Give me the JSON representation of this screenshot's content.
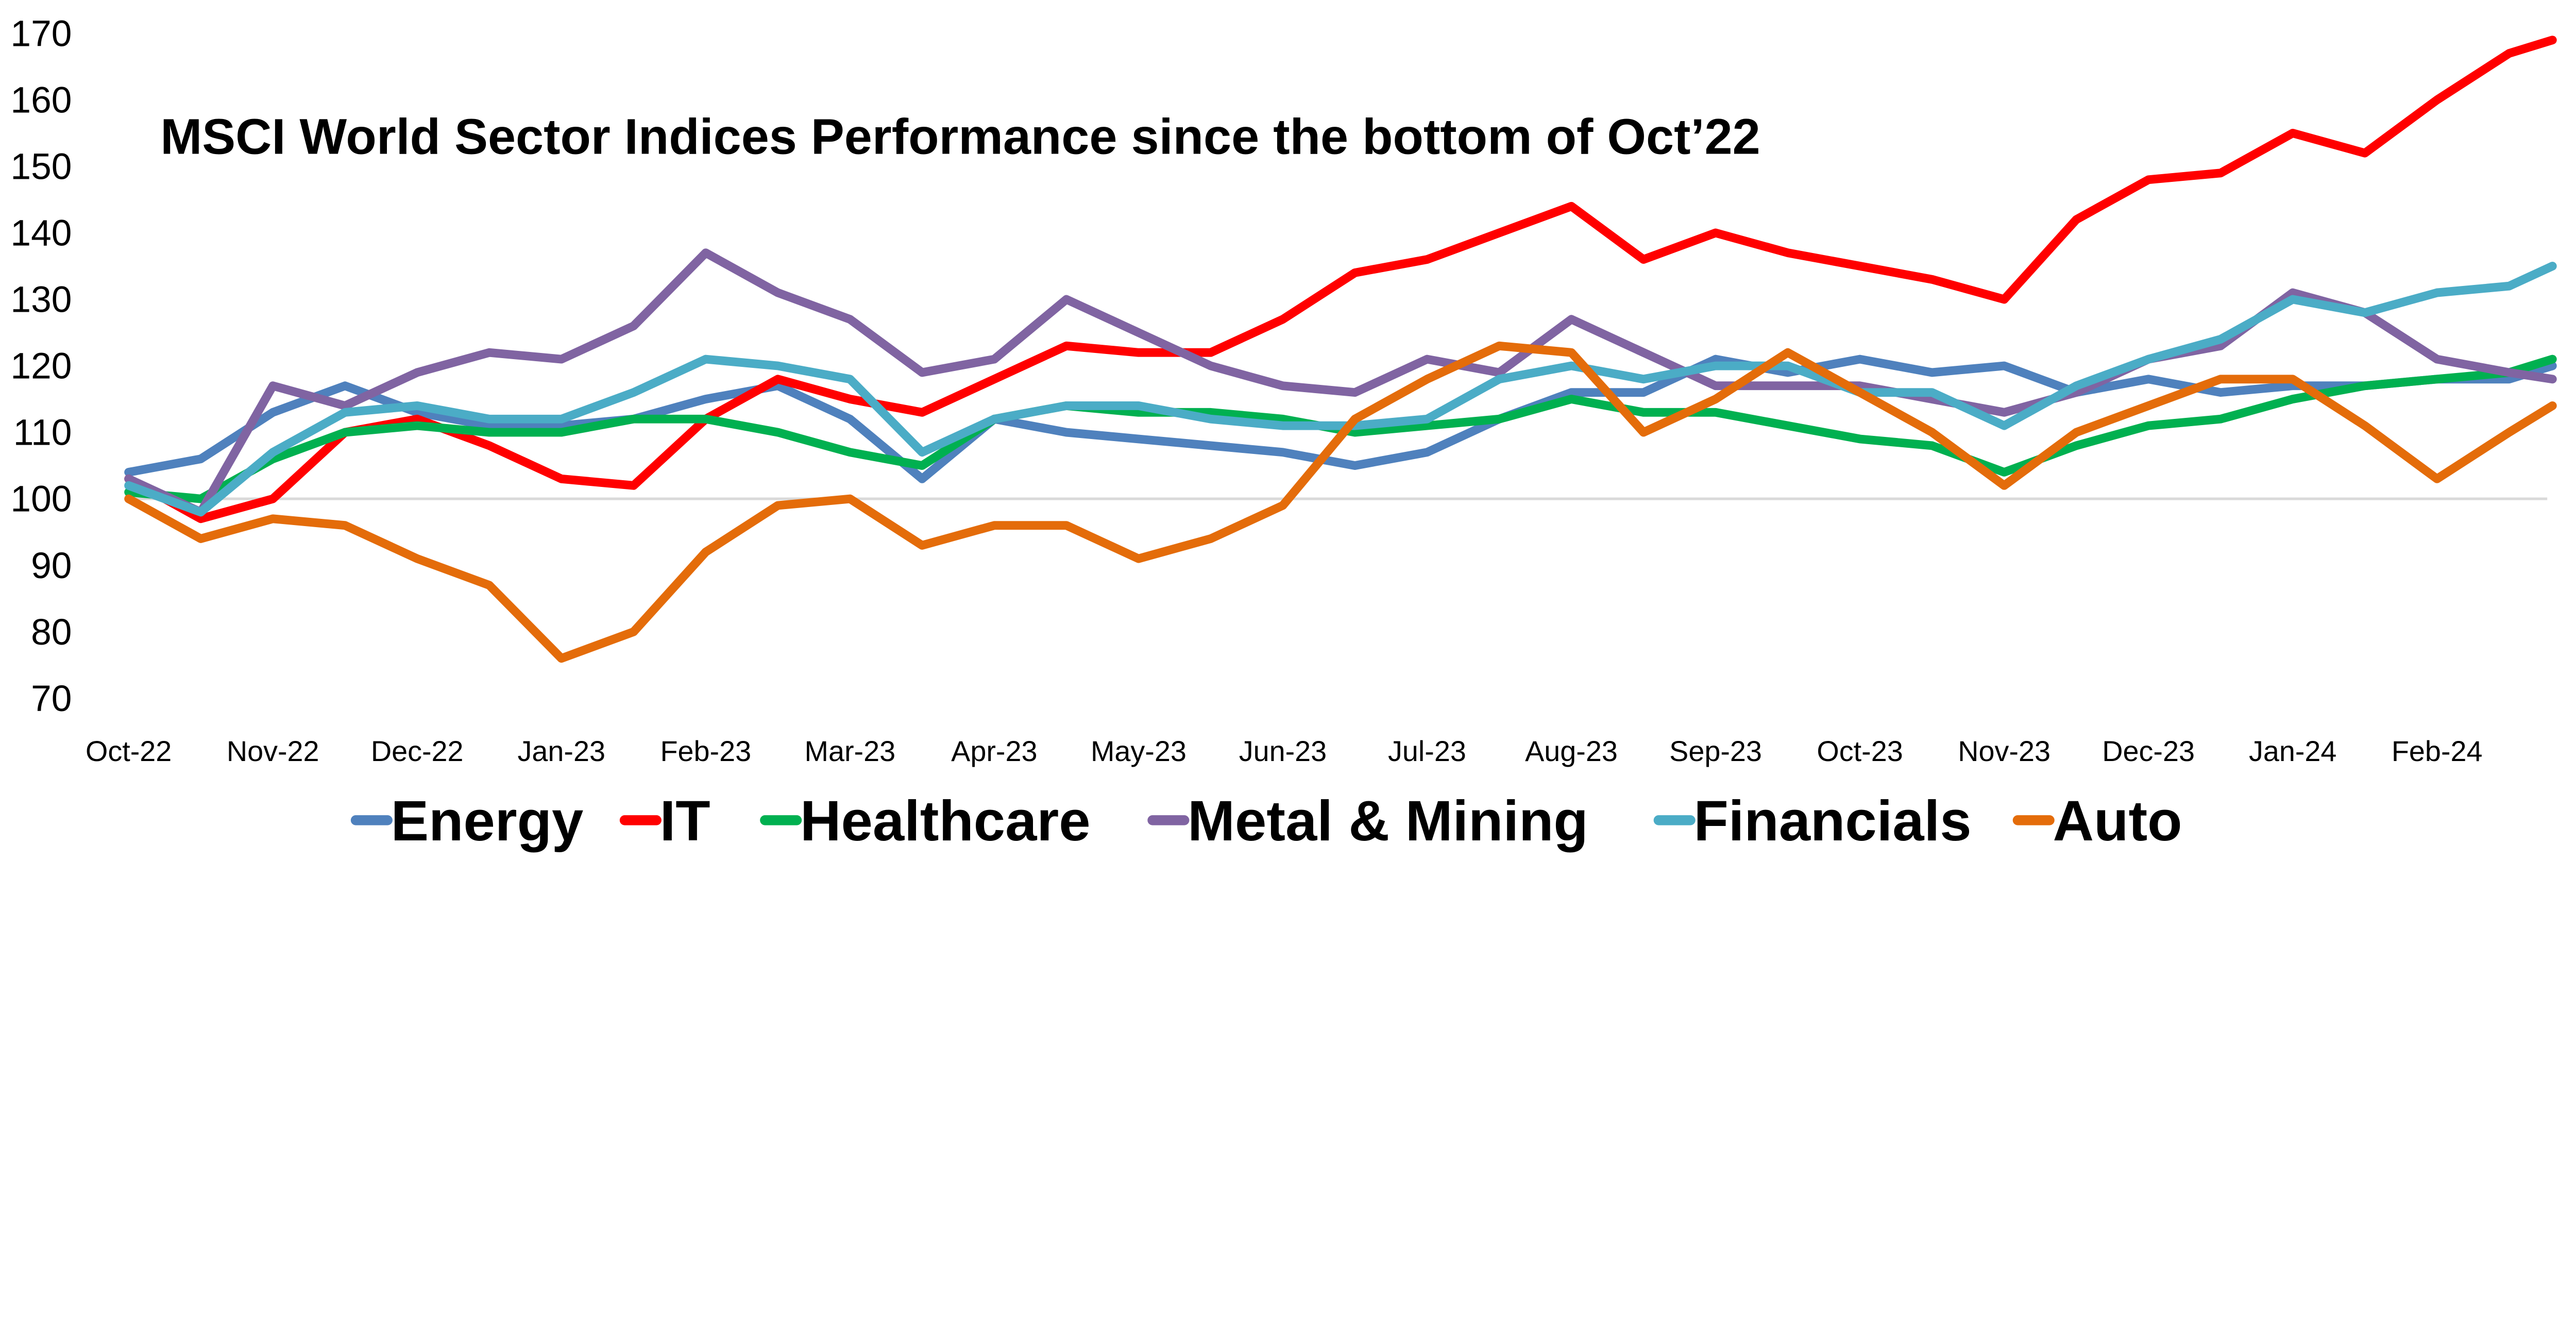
{
  "chart_data": {
    "type": "line",
    "title": "MSCI World Sector Indices Performance since the bottom of Oct’22",
    "xlabel": "",
    "ylabel": "",
    "ylim": [
      70,
      170
    ],
    "yticks": [
      70,
      80,
      90,
      100,
      110,
      120,
      130,
      140,
      150,
      160,
      170
    ],
    "xtick_labels": [
      "Oct-22",
      "Nov-22",
      "Dec-22",
      "Jan-23",
      "Feb-23",
      "Mar-23",
      "Apr-23",
      "May-23",
      "Jun-23",
      "Jul-23",
      "Aug-23",
      "Sep-23",
      "Oct-23",
      "Nov-23",
      "Dec-23",
      "Jan-24",
      "Feb-24"
    ],
    "x_unit": "months since Oct-22",
    "x": [
      0,
      0.5,
      1,
      1.5,
      2,
      2.5,
      3,
      3.5,
      4,
      4.5,
      5,
      5.5,
      6,
      6.5,
      7,
      7.5,
      8,
      8.5,
      9,
      9.5,
      10,
      10.5,
      11,
      11.5,
      12,
      12.5,
      13,
      13.5,
      14,
      14.5,
      15,
      15.5,
      16,
      16.5,
      16.8
    ],
    "xlim": [
      0,
      16.8
    ],
    "grid": "reference line at 100",
    "legend_position": "bottom",
    "series": [
      {
        "name": "Energy",
        "color": "#4F81BD",
        "values": [
          104,
          106,
          113,
          117,
          113,
          111,
          111,
          112,
          115,
          117,
          112,
          103,
          112,
          110,
          109,
          108,
          107,
          105,
          107,
          112,
          116,
          116,
          121,
          119,
          121,
          119,
          120,
          116,
          118,
          116,
          117,
          117,
          118,
          118,
          120
        ]
      },
      {
        "name": "IT",
        "color": "#FF0000",
        "values": [
          103,
          97,
          100,
          110,
          112,
          108,
          103,
          102,
          112,
          118,
          115,
          113,
          118,
          123,
          122,
          122,
          127,
          134,
          136,
          140,
          144,
          136,
          140,
          137,
          135,
          133,
          130,
          142,
          148,
          149,
          155,
          152,
          160,
          167,
          169
        ]
      },
      {
        "name": "Healthcare",
        "color": "#00B050",
        "values": [
          101,
          100,
          106,
          110,
          111,
          110,
          110,
          112,
          112,
          110,
          107,
          105,
          112,
          114,
          113,
          113,
          112,
          110,
          111,
          112,
          115,
          113,
          113,
          111,
          109,
          108,
          104,
          108,
          111,
          112,
          115,
          117,
          118,
          119,
          121
        ]
      },
      {
        "name": "Metal & Mining",
        "color": "#8064A2",
        "values": [
          103,
          98,
          117,
          114,
          119,
          122,
          121,
          126,
          137,
          131,
          127,
          119,
          121,
          130,
          125,
          120,
          117,
          116,
          121,
          119,
          127,
          122,
          117,
          117,
          117,
          115,
          113,
          116,
          121,
          123,
          131,
          128,
          121,
          119,
          118
        ]
      },
      {
        "name": "Financials",
        "color": "#4BACC6",
        "values": [
          102,
          98,
          107,
          113,
          114,
          112,
          112,
          116,
          121,
          120,
          118,
          107,
          112,
          114,
          114,
          112,
          111,
          111,
          112,
          118,
          120,
          118,
          120,
          120,
          116,
          116,
          111,
          117,
          121,
          124,
          130,
          128,
          131,
          132,
          135
        ]
      },
      {
        "name": "Auto",
        "color": "#E46C0A",
        "values": [
          100,
          94,
          97,
          96,
          91,
          87,
          76,
          80,
          92,
          99,
          100,
          93,
          96,
          96,
          91,
          94,
          99,
          112,
          118,
          123,
          122,
          110,
          115,
          122,
          116,
          110,
          102,
          110,
          114,
          118,
          118,
          111,
          103,
          110,
          114
        ]
      }
    ]
  }
}
